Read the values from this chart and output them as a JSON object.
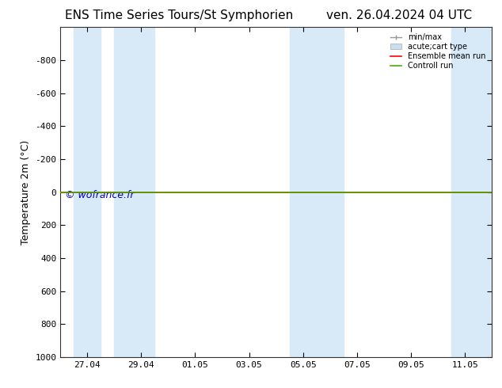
{
  "title_left": "ENS Time Series Tours/St Symphorien",
  "title_right": "ven. 26.04.2024 04 UTC",
  "ylabel": "Temperature 2m (°C)",
  "ylim": [
    -1000,
    1000
  ],
  "yticks": [
    -800,
    -600,
    -400,
    -200,
    0,
    200,
    400,
    600,
    800,
    1000
  ],
  "xtick_labels": [
    "27.04",
    "29.04",
    "01.05",
    "03.05",
    "05.05",
    "07.05",
    "09.05",
    "11.05"
  ],
  "xtick_positions": [
    1,
    3,
    5,
    7,
    9,
    11,
    13,
    15
  ],
  "xlim": [
    0,
    16
  ],
  "background_color": "#ffffff",
  "plot_bg_color": "#ffffff",
  "band_regions": [
    [
      0.5,
      1.5
    ],
    [
      2.0,
      3.5
    ],
    [
      8.5,
      9.5
    ],
    [
      9.5,
      10.5
    ],
    [
      14.5,
      16.0
    ]
  ],
  "band_color": "#d8eaf8",
  "hline_red_color": "#ff0000",
  "hline_green_color": "#4aaa00",
  "watermark": "© wofrance.fr",
  "watermark_color": "#0000cc",
  "legend_entries": [
    {
      "label": "min/max",
      "type": "errorbar",
      "color": "#999999"
    },
    {
      "label": "acute;cart type",
      "type": "bar",
      "color": "#c8dff0"
    },
    {
      "label": "Ensemble mean run",
      "type": "line",
      "color": "#ff0000"
    },
    {
      "label": "Controll run",
      "type": "line",
      "color": "#4aaa00"
    }
  ],
  "title_fontsize": 11,
  "tick_fontsize": 8,
  "ylabel_fontsize": 9,
  "legend_fontsize": 7
}
